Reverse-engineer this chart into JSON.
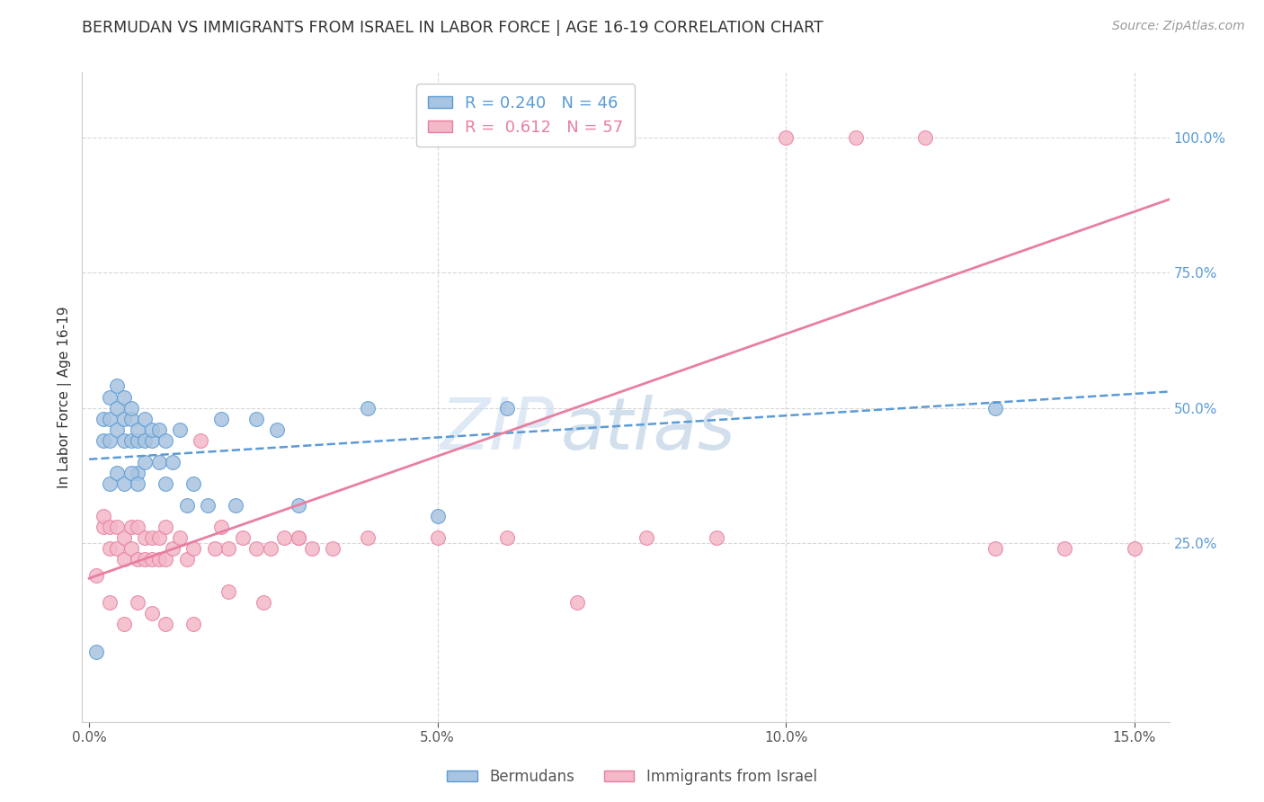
{
  "title": "BERMUDAN VS IMMIGRANTS FROM ISRAEL IN LABOR FORCE | AGE 16-19 CORRELATION CHART",
  "source": "Source: ZipAtlas.com",
  "ylabel_label": "In Labor Force | Age 16-19",
  "xlim": [
    -0.001,
    0.155
  ],
  "ylim": [
    -0.08,
    1.12
  ],
  "xticks": [
    0.0,
    0.05,
    0.1,
    0.15
  ],
  "xtick_labels": [
    "0.0%",
    "5.0%",
    "10.0%",
    "15.0%"
  ],
  "yticks_right": [
    0.25,
    0.5,
    0.75,
    1.0
  ],
  "ytick_right_labels": [
    "25.0%",
    "50.0%",
    "75.0%",
    "100.0%"
  ],
  "bermudans_color": "#a8c4e0",
  "bermudans_edge_color": "#5b9bd5",
  "israel_color": "#f4b8c8",
  "israel_edge_color": "#e87fa0",
  "bermudans_R": 0.24,
  "bermudans_N": 46,
  "israel_R": 0.612,
  "israel_N": 57,
  "watermark_zip": "ZIP",
  "watermark_atlas": "atlas",
  "bermudans_x": [
    0.001,
    0.002,
    0.002,
    0.003,
    0.003,
    0.003,
    0.004,
    0.004,
    0.004,
    0.005,
    0.005,
    0.005,
    0.006,
    0.006,
    0.006,
    0.007,
    0.007,
    0.007,
    0.008,
    0.008,
    0.009,
    0.009,
    0.01,
    0.01,
    0.011,
    0.011,
    0.012,
    0.013,
    0.014,
    0.015,
    0.017,
    0.019,
    0.021,
    0.024,
    0.027,
    0.03,
    0.04,
    0.05,
    0.06,
    0.13,
    0.003,
    0.004,
    0.005,
    0.006,
    0.007,
    0.008
  ],
  "bermudans_y": [
    0.05,
    0.44,
    0.48,
    0.44,
    0.48,
    0.52,
    0.46,
    0.5,
    0.54,
    0.44,
    0.48,
    0.52,
    0.44,
    0.48,
    0.5,
    0.38,
    0.44,
    0.46,
    0.44,
    0.48,
    0.44,
    0.46,
    0.4,
    0.46,
    0.36,
    0.44,
    0.4,
    0.46,
    0.32,
    0.36,
    0.32,
    0.48,
    0.32,
    0.48,
    0.46,
    0.32,
    0.5,
    0.3,
    0.5,
    0.5,
    0.36,
    0.38,
    0.36,
    0.38,
    0.36,
    0.4
  ],
  "israel_x": [
    0.001,
    0.002,
    0.002,
    0.003,
    0.003,
    0.004,
    0.004,
    0.005,
    0.005,
    0.006,
    0.006,
    0.007,
    0.007,
    0.008,
    0.008,
    0.009,
    0.009,
    0.01,
    0.01,
    0.011,
    0.011,
    0.012,
    0.013,
    0.014,
    0.015,
    0.016,
    0.018,
    0.019,
    0.02,
    0.022,
    0.024,
    0.026,
    0.028,
    0.03,
    0.032,
    0.035,
    0.04,
    0.05,
    0.06,
    0.07,
    0.08,
    0.09,
    0.1,
    0.11,
    0.12,
    0.13,
    0.14,
    0.15,
    0.003,
    0.005,
    0.007,
    0.009,
    0.011,
    0.015,
    0.02,
    0.025,
    0.03
  ],
  "israel_y": [
    0.19,
    0.28,
    0.3,
    0.24,
    0.28,
    0.24,
    0.28,
    0.22,
    0.26,
    0.24,
    0.28,
    0.22,
    0.28,
    0.22,
    0.26,
    0.22,
    0.26,
    0.22,
    0.26,
    0.22,
    0.28,
    0.24,
    0.26,
    0.22,
    0.24,
    0.44,
    0.24,
    0.28,
    0.24,
    0.26,
    0.24,
    0.24,
    0.26,
    0.26,
    0.24,
    0.24,
    0.26,
    0.26,
    0.26,
    0.14,
    0.26,
    0.26,
    1.0,
    1.0,
    1.0,
    0.24,
    0.24,
    0.24,
    0.14,
    0.1,
    0.14,
    0.12,
    0.1,
    0.1,
    0.16,
    0.14,
    0.26
  ],
  "bermudans_trend_x": [
    0.0,
    0.155
  ],
  "bermudans_trend_y": [
    0.405,
    0.53
  ],
  "israel_trend_x": [
    0.0,
    0.155
  ],
  "israel_trend_y": [
    0.185,
    0.885
  ],
  "grid_color": "#d8d8d8",
  "background_color": "#ffffff",
  "right_tick_color": "#5b9bd5",
  "legend_facecolor": "#ffffff",
  "legend_edgecolor": "#cccccc"
}
